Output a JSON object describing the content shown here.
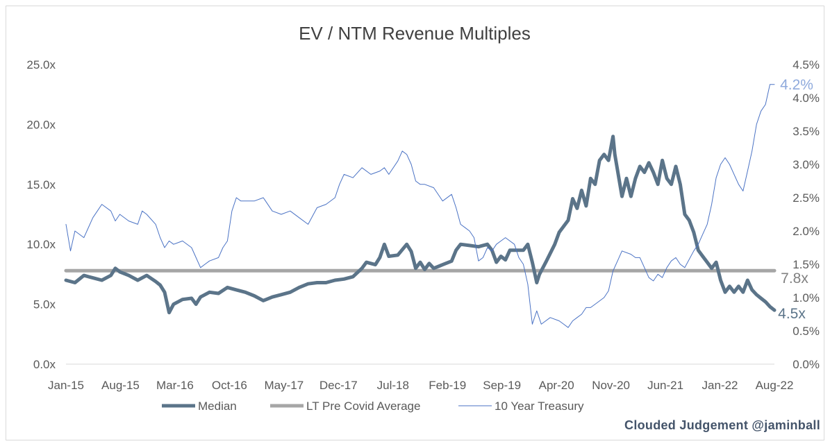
{
  "chart_data": {
    "type": "line",
    "title": "EV / NTM Revenue Multiples",
    "y_left": {
      "ticks": [
        "0.0x",
        "5.0x",
        "10.0x",
        "15.0x",
        "20.0x",
        "25.0x"
      ],
      "lim": [
        0,
        25
      ]
    },
    "y_right": {
      "ticks": [
        "0.0%",
        "0.5%",
        "1.0%",
        "1.5%",
        "2.0%",
        "2.5%",
        "3.0%",
        "3.5%",
        "4.0%",
        "4.5%"
      ],
      "lim": [
        0,
        4.5
      ]
    },
    "x_ticks": [
      "Jan-15",
      "Aug-15",
      "Mar-16",
      "Oct-16",
      "May-17",
      "Dec-17",
      "Jul-18",
      "Feb-19",
      "Sep-19",
      "Apr-20",
      "Nov-20",
      "Jun-21",
      "Jan-22",
      "Aug-22"
    ],
    "x_range": [
      2015.0,
      2022.9
    ],
    "grid": false,
    "legend_position": "bottom",
    "series": [
      {
        "name": "Median",
        "axis": "left",
        "color": "#5b7489",
        "values": [
          [
            2015.0,
            7.0
          ],
          [
            2015.1,
            6.8
          ],
          [
            2015.2,
            7.4
          ],
          [
            2015.3,
            7.2
          ],
          [
            2015.4,
            7.0
          ],
          [
            2015.5,
            7.4
          ],
          [
            2015.55,
            8.0
          ],
          [
            2015.6,
            7.7
          ],
          [
            2015.7,
            7.4
          ],
          [
            2015.8,
            7.0
          ],
          [
            2015.9,
            7.4
          ],
          [
            2016.0,
            6.9
          ],
          [
            2016.05,
            6.6
          ],
          [
            2016.1,
            6.0
          ],
          [
            2016.15,
            4.3
          ],
          [
            2016.2,
            5.0
          ],
          [
            2016.3,
            5.4
          ],
          [
            2016.4,
            5.5
          ],
          [
            2016.45,
            5.0
          ],
          [
            2016.5,
            5.6
          ],
          [
            2016.6,
            6.0
          ],
          [
            2016.7,
            5.9
          ],
          [
            2016.8,
            6.4
          ],
          [
            2016.9,
            6.2
          ],
          [
            2017.0,
            6.0
          ],
          [
            2017.1,
            5.7
          ],
          [
            2017.2,
            5.3
          ],
          [
            2017.3,
            5.6
          ],
          [
            2017.4,
            5.8
          ],
          [
            2017.5,
            6.0
          ],
          [
            2017.6,
            6.4
          ],
          [
            2017.7,
            6.7
          ],
          [
            2017.8,
            6.8
          ],
          [
            2017.9,
            6.8
          ],
          [
            2018.0,
            7.0
          ],
          [
            2018.1,
            7.1
          ],
          [
            2018.2,
            7.3
          ],
          [
            2018.3,
            8.0
          ],
          [
            2018.35,
            8.5
          ],
          [
            2018.45,
            8.3
          ],
          [
            2018.5,
            8.9
          ],
          [
            2018.55,
            10.0
          ],
          [
            2018.6,
            9.0
          ],
          [
            2018.7,
            9.1
          ],
          [
            2018.8,
            10.0
          ],
          [
            2018.85,
            9.4
          ],
          [
            2018.9,
            8.0
          ],
          [
            2018.95,
            8.5
          ],
          [
            2019.0,
            7.9
          ],
          [
            2019.05,
            8.4
          ],
          [
            2019.1,
            8.0
          ],
          [
            2019.2,
            8.3
          ],
          [
            2019.3,
            8.6
          ],
          [
            2019.35,
            9.5
          ],
          [
            2019.4,
            10.0
          ],
          [
            2019.5,
            9.9
          ],
          [
            2019.6,
            9.8
          ],
          [
            2019.7,
            10.0
          ],
          [
            2019.75,
            9.5
          ],
          [
            2019.8,
            8.5
          ],
          [
            2019.85,
            9.0
          ],
          [
            2019.9,
            8.7
          ],
          [
            2019.95,
            9.5
          ],
          [
            2020.0,
            9.5
          ],
          [
            2020.1,
            9.5
          ],
          [
            2020.15,
            10.0
          ],
          [
            2020.2,
            8.5
          ],
          [
            2020.25,
            6.8
          ],
          [
            2020.28,
            7.5
          ],
          [
            2020.35,
            8.5
          ],
          [
            2020.45,
            10.0
          ],
          [
            2020.5,
            11.0
          ],
          [
            2020.6,
            12.0
          ],
          [
            2020.65,
            13.8
          ],
          [
            2020.7,
            13.0
          ],
          [
            2020.75,
            14.5
          ],
          [
            2020.8,
            13.2
          ],
          [
            2020.85,
            15.5
          ],
          [
            2020.9,
            15.0
          ],
          [
            2020.95,
            17.0
          ],
          [
            2021.0,
            17.5
          ],
          [
            2021.05,
            17.0
          ],
          [
            2021.1,
            19.0
          ],
          [
            2021.12,
            17.5
          ],
          [
            2021.2,
            14.0
          ],
          [
            2021.25,
            15.5
          ],
          [
            2021.3,
            14.0
          ],
          [
            2021.35,
            15.5
          ],
          [
            2021.4,
            16.5
          ],
          [
            2021.45,
            16.0
          ],
          [
            2021.5,
            16.8
          ],
          [
            2021.55,
            16.0
          ],
          [
            2021.6,
            15.0
          ],
          [
            2021.65,
            17.0
          ],
          [
            2021.7,
            15.5
          ],
          [
            2021.75,
            15.0
          ],
          [
            2021.8,
            16.5
          ],
          [
            2021.85,
            15.0
          ],
          [
            2021.9,
            12.5
          ],
          [
            2021.95,
            12.0
          ],
          [
            2022.0,
            11.0
          ],
          [
            2022.05,
            9.5
          ],
          [
            2022.1,
            9.0
          ],
          [
            2022.15,
            8.5
          ],
          [
            2022.2,
            8.0
          ],
          [
            2022.25,
            8.5
          ],
          [
            2022.3,
            7.0
          ],
          [
            2022.35,
            6.0
          ],
          [
            2022.4,
            6.5
          ],
          [
            2022.45,
            6.0
          ],
          [
            2022.5,
            6.5
          ],
          [
            2022.55,
            6.0
          ],
          [
            2022.6,
            7.0
          ],
          [
            2022.65,
            6.2
          ],
          [
            2022.7,
            5.8
          ],
          [
            2022.75,
            5.5
          ],
          [
            2022.8,
            5.2
          ],
          [
            2022.85,
            4.8
          ],
          [
            2022.9,
            4.5
          ]
        ]
      },
      {
        "name": "LT Pre Covid Average",
        "axis": "left",
        "color": "#a6a6a6",
        "values": [
          [
            2015.0,
            7.8
          ],
          [
            2022.9,
            7.8
          ]
        ]
      },
      {
        "name": "10 Year Treasury",
        "axis": "right",
        "color": "#4a72c4",
        "values": [
          [
            2015.0,
            2.1
          ],
          [
            2015.05,
            1.7
          ],
          [
            2015.1,
            2.0
          ],
          [
            2015.2,
            1.9
          ],
          [
            2015.3,
            2.2
          ],
          [
            2015.35,
            2.3
          ],
          [
            2015.4,
            2.4
          ],
          [
            2015.5,
            2.3
          ],
          [
            2015.55,
            2.15
          ],
          [
            2015.6,
            2.25
          ],
          [
            2015.7,
            2.15
          ],
          [
            2015.8,
            2.1
          ],
          [
            2015.85,
            2.3
          ],
          [
            2015.9,
            2.25
          ],
          [
            2016.0,
            2.1
          ],
          [
            2016.05,
            1.9
          ],
          [
            2016.1,
            1.75
          ],
          [
            2016.15,
            1.85
          ],
          [
            2016.2,
            1.8
          ],
          [
            2016.3,
            1.85
          ],
          [
            2016.4,
            1.75
          ],
          [
            2016.5,
            1.45
          ],
          [
            2016.55,
            1.5
          ],
          [
            2016.6,
            1.55
          ],
          [
            2016.7,
            1.6
          ],
          [
            2016.75,
            1.75
          ],
          [
            2016.8,
            1.85
          ],
          [
            2016.85,
            2.3
          ],
          [
            2016.9,
            2.5
          ],
          [
            2016.95,
            2.45
          ],
          [
            2017.0,
            2.45
          ],
          [
            2017.1,
            2.45
          ],
          [
            2017.2,
            2.5
          ],
          [
            2017.3,
            2.3
          ],
          [
            2017.4,
            2.25
          ],
          [
            2017.5,
            2.3
          ],
          [
            2017.6,
            2.2
          ],
          [
            2017.7,
            2.1
          ],
          [
            2017.8,
            2.35
          ],
          [
            2017.9,
            2.4
          ],
          [
            2018.0,
            2.5
          ],
          [
            2018.05,
            2.7
          ],
          [
            2018.1,
            2.85
          ],
          [
            2018.2,
            2.8
          ],
          [
            2018.3,
            2.95
          ],
          [
            2018.4,
            2.85
          ],
          [
            2018.5,
            2.9
          ],
          [
            2018.55,
            2.95
          ],
          [
            2018.6,
            2.85
          ],
          [
            2018.7,
            3.05
          ],
          [
            2018.75,
            3.2
          ],
          [
            2018.8,
            3.15
          ],
          [
            2018.85,
            3.0
          ],
          [
            2018.9,
            2.75
          ],
          [
            2018.95,
            2.7
          ],
          [
            2019.0,
            2.7
          ],
          [
            2019.1,
            2.65
          ],
          [
            2019.2,
            2.45
          ],
          [
            2019.3,
            2.55
          ],
          [
            2019.35,
            2.35
          ],
          [
            2019.4,
            2.1
          ],
          [
            2019.45,
            2.05
          ],
          [
            2019.5,
            2.0
          ],
          [
            2019.55,
            1.9
          ],
          [
            2019.6,
            1.55
          ],
          [
            2019.65,
            1.6
          ],
          [
            2019.7,
            1.75
          ],
          [
            2019.75,
            1.7
          ],
          [
            2019.8,
            1.8
          ],
          [
            2019.85,
            1.85
          ],
          [
            2019.9,
            1.9
          ],
          [
            2020.0,
            1.8
          ],
          [
            2020.05,
            1.6
          ],
          [
            2020.1,
            1.5
          ],
          [
            2020.15,
            1.2
          ],
          [
            2020.2,
            0.6
          ],
          [
            2020.25,
            0.8
          ],
          [
            2020.3,
            0.6
          ],
          [
            2020.4,
            0.7
          ],
          [
            2020.5,
            0.65
          ],
          [
            2020.55,
            0.6
          ],
          [
            2020.6,
            0.55
          ],
          [
            2020.65,
            0.65
          ],
          [
            2020.7,
            0.7
          ],
          [
            2020.75,
            0.75
          ],
          [
            2020.8,
            0.85
          ],
          [
            2020.85,
            0.85
          ],
          [
            2020.9,
            0.9
          ],
          [
            2021.0,
            1.0
          ],
          [
            2021.05,
            1.1
          ],
          [
            2021.1,
            1.4
          ],
          [
            2021.15,
            1.55
          ],
          [
            2021.2,
            1.7
          ],
          [
            2021.3,
            1.65
          ],
          [
            2021.35,
            1.6
          ],
          [
            2021.4,
            1.6
          ],
          [
            2021.45,
            1.45
          ],
          [
            2021.5,
            1.3
          ],
          [
            2021.55,
            1.25
          ],
          [
            2021.6,
            1.35
          ],
          [
            2021.65,
            1.3
          ],
          [
            2021.7,
            1.45
          ],
          [
            2021.75,
            1.55
          ],
          [
            2021.8,
            1.6
          ],
          [
            2021.85,
            1.5
          ],
          [
            2021.9,
            1.45
          ],
          [
            2022.0,
            1.7
          ],
          [
            2022.05,
            1.8
          ],
          [
            2022.1,
            1.95
          ],
          [
            2022.15,
            2.1
          ],
          [
            2022.2,
            2.4
          ],
          [
            2022.25,
            2.8
          ],
          [
            2022.3,
            3.0
          ],
          [
            2022.35,
            3.1
          ],
          [
            2022.4,
            3.0
          ],
          [
            2022.45,
            2.85
          ],
          [
            2022.5,
            2.7
          ],
          [
            2022.55,
            2.6
          ],
          [
            2022.6,
            2.9
          ],
          [
            2022.65,
            3.2
          ],
          [
            2022.7,
            3.6
          ],
          [
            2022.75,
            3.8
          ],
          [
            2022.8,
            3.9
          ],
          [
            2022.85,
            4.2
          ],
          [
            2022.9,
            4.2
          ]
        ]
      }
    ],
    "annotations": {
      "median_end": "4.5x",
      "average": "7.8x",
      "treasury_end": "4.2%"
    }
  },
  "watermark": "Clouded Judgement @jaminball"
}
